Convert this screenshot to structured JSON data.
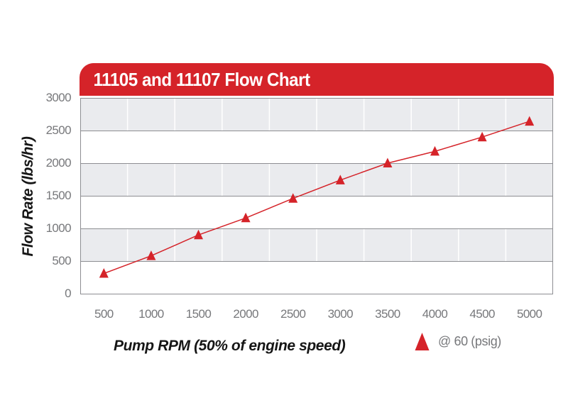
{
  "header": {
    "title": "11105 and 11107 Flow Chart",
    "bg_color": "#d52329",
    "text_color": "#ffffff"
  },
  "chart_data": {
    "type": "line",
    "title": "11105 and 11107 Flow Chart",
    "xlabel": "Pump RPM (50% of engine speed)",
    "ylabel": "Flow Rate (lbs/hr)",
    "x": [
      500,
      1000,
      1500,
      2000,
      2500,
      3000,
      3500,
      4000,
      4500,
      5000
    ],
    "series": [
      {
        "name": "@ 60 (psig)",
        "marker": "triangle-up",
        "color": "#d52329",
        "values": [
          310,
          580,
          900,
          1160,
          1460,
          1740,
          2000,
          2180,
          2400,
          2640
        ]
      }
    ],
    "ylim": [
      0,
      3000
    ],
    "y_ticks": [
      0,
      500,
      1000,
      1500,
      2000,
      2500,
      3000
    ],
    "grid": {
      "horizontal": true,
      "vertical": true,
      "alternating_bands": true
    },
    "legend": {
      "position": "bottom-right",
      "label": "@ 60 (psig)"
    },
    "colors": {
      "band": "#eaebee",
      "h_grid": "#8d8e92",
      "v_grid": "#ffffff",
      "border": "#8d8e92",
      "tick_text": "#77787b",
      "axis_title_text": "#161616",
      "line": "#d52329",
      "legend_text": "#77787b"
    }
  }
}
